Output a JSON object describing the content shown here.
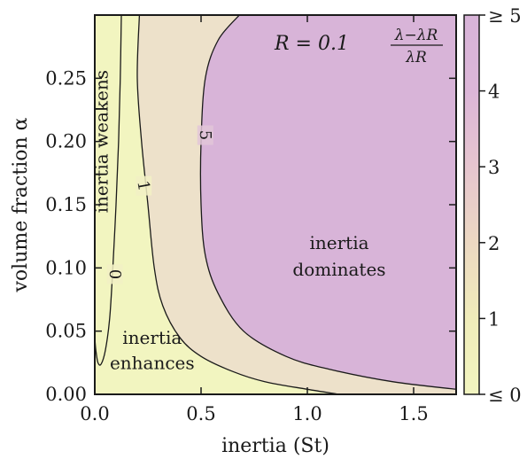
{
  "chart_data": {
    "type": "heatmap",
    "xlabel": "inertia (St)",
    "ylabel": "volume fraction α",
    "xlim": [
      0.0,
      1.7
    ],
    "ylim": [
      0.0,
      0.3
    ],
    "xticks": [
      0.0,
      0.5,
      1.0,
      1.5
    ],
    "xtick_labels": [
      "0.0",
      "0.5",
      "1.0",
      "1.5"
    ],
    "yticks": [
      0.0,
      0.05,
      0.1,
      0.15,
      0.2,
      0.25
    ],
    "ytick_labels": [
      "0.00",
      "0.05",
      "0.10",
      "0.15",
      "0.20",
      "0.25"
    ],
    "colorbar": {
      "range": [
        0,
        5
      ],
      "ticks": [
        0,
        1,
        2,
        3,
        4,
        5
      ],
      "tick_labels": [
        "≤ 0",
        "1",
        "2",
        "3",
        "4",
        "≥ 5"
      ],
      "title": "(λ−λR)/λR",
      "title_numerator": "λ−λR",
      "title_denominator": "λR",
      "colors": [
        "#f2f5c0",
        "#f0ecba",
        "#ecd8c2",
        "#e6c5cf",
        "#dcb6d8",
        "#d8b4d8"
      ]
    },
    "parameter_text": "R = 0.1",
    "contours": [
      {
        "level": 0,
        "label": "0",
        "points": [
          [
            0.125,
            0.3
          ],
          [
            0.12,
            0.25
          ],
          [
            0.112,
            0.2
          ],
          [
            0.1,
            0.15
          ],
          [
            0.085,
            0.1
          ],
          [
            0.07,
            0.06
          ],
          [
            0.05,
            0.035
          ],
          [
            0.03,
            0.024
          ],
          [
            0.015,
            0.025
          ],
          [
            0.005,
            0.035
          ],
          [
            0.0,
            0.045
          ]
        ]
      },
      {
        "level": 1,
        "label": "1",
        "points": [
          [
            0.21,
            0.3
          ],
          [
            0.2,
            0.25
          ],
          [
            0.22,
            0.2
          ],
          [
            0.25,
            0.15
          ],
          [
            0.28,
            0.1
          ],
          [
            0.32,
            0.07
          ],
          [
            0.4,
            0.045
          ],
          [
            0.5,
            0.03
          ],
          [
            0.65,
            0.018
          ],
          [
            0.8,
            0.01
          ],
          [
            1.0,
            0.004
          ],
          [
            1.15,
            0.0
          ]
        ]
      },
      {
        "level": 5,
        "label": "5",
        "points": [
          [
            0.68,
            0.3
          ],
          [
            0.58,
            0.28
          ],
          [
            0.52,
            0.25
          ],
          [
            0.5,
            0.2
          ],
          [
            0.5,
            0.15
          ],
          [
            0.52,
            0.11
          ],
          [
            0.58,
            0.08
          ],
          [
            0.7,
            0.05
          ],
          [
            0.9,
            0.03
          ],
          [
            1.1,
            0.02
          ],
          [
            1.4,
            0.01
          ],
          [
            1.7,
            0.004
          ]
        ]
      }
    ],
    "annotations": [
      {
        "text": "inertia weakens",
        "x": 0.06,
        "y": 0.2
      },
      {
        "text": "inertia",
        "x": 0.27,
        "y": 0.04
      },
      {
        "text": "enhances",
        "x": 0.27,
        "y": 0.02
      },
      {
        "text": "inertia",
        "x": 1.15,
        "y": 0.115
      },
      {
        "text": "dominates",
        "x": 1.15,
        "y": 0.094
      }
    ]
  }
}
